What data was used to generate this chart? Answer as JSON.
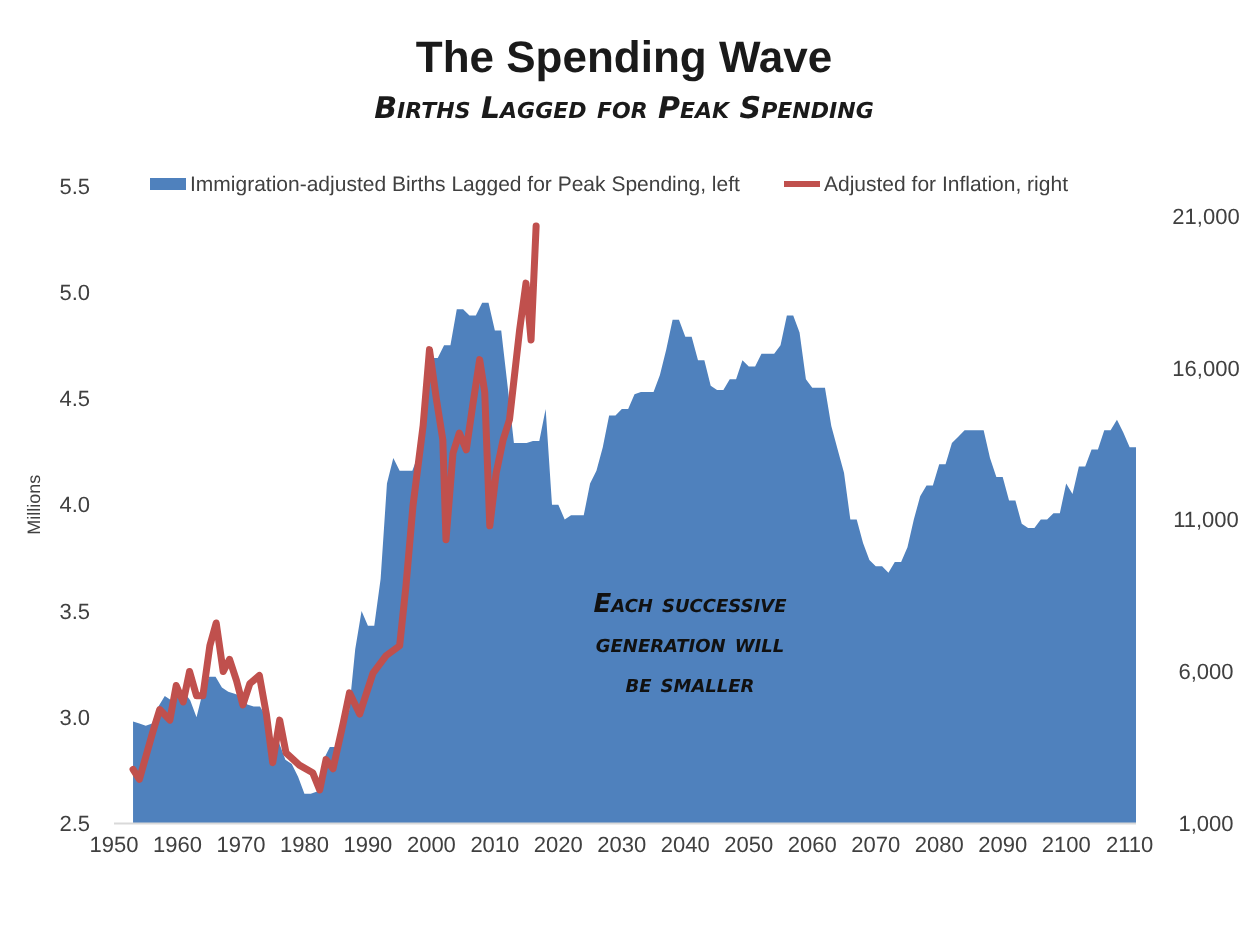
{
  "chart_data": {
    "type": "area",
    "title": "The Spending Wave",
    "subtitle": "Births Lagged for Peak Spending",
    "ylabel": "Millions",
    "xlim": [
      1950,
      2111
    ],
    "xticks": [
      1950,
      1960,
      1970,
      1980,
      1990,
      2000,
      2010,
      2020,
      2030,
      2040,
      2050,
      2060,
      2070,
      2080,
      2090,
      2100,
      2110
    ],
    "ylim": [
      2.5,
      5.5
    ],
    "yticks": [
      {
        "value": 2.5,
        "label": "2.5"
      },
      {
        "value": 3,
        "label": "3.0"
      },
      {
        "value": 3.5,
        "label": "3.5"
      },
      {
        "value": 4,
        "label": "4.0"
      },
      {
        "value": 4.5,
        "label": "4.5"
      },
      {
        "value": 5,
        "label": "5.0"
      },
      {
        "value": 5.5,
        "label": "5.5"
      }
    ],
    "y2lim": [
      1000,
      21000
    ],
    "y2ticks": [
      {
        "value": 1000,
        "label": "1,000"
      },
      {
        "value": 6000,
        "label": "6,000"
      },
      {
        "value": 11000,
        "label": "11,000"
      },
      {
        "value": 16000,
        "label": "16,000"
      },
      {
        "value": 21000,
        "label": "21,000"
      }
    ],
    "legend": "top",
    "grid": false,
    "annotations": [
      "Each successive generation will be smaller"
    ],
    "series": [
      {
        "name": "Immigration-adjusted Births Lagged for Peak Spending, left",
        "color": "#4f81bd",
        "x": [
          1953,
          1954,
          1955,
          1956,
          1957,
          1958,
          1959,
          1960,
          1961,
          1962,
          1963,
          1964,
          1965,
          1966,
          1967,
          1968,
          1969,
          1970,
          1971,
          1972,
          1973,
          1974,
          1975,
          1976,
          1977,
          1978,
          1979,
          1980,
          1981,
          1982,
          1983,
          1984,
          1985,
          1986,
          1987,
          1988,
          1989,
          1990,
          1991,
          1992,
          1993,
          1994,
          1995,
          1996,
          1997,
          1998,
          1999,
          2000,
          2001,
          2002,
          2003,
          2004,
          2005,
          2006,
          2007,
          2008,
          2009,
          2010,
          2011,
          2012,
          2013,
          2014,
          2015,
          2016,
          2017,
          2018,
          2019,
          2020,
          2021,
          2022,
          2023,
          2024,
          2025,
          2026,
          2027,
          2028,
          2029,
          2030,
          2031,
          2032,
          2033,
          2034,
          2035,
          2036,
          2037,
          2038,
          2039,
          2040,
          2041,
          2042,
          2043,
          2044,
          2045,
          2046,
          2047,
          2048,
          2049,
          2050,
          2051,
          2052,
          2053,
          2054,
          2055,
          2056,
          2057,
          2058,
          2059,
          2060,
          2061,
          2062,
          2063,
          2064,
          2065,
          2066,
          2067,
          2068,
          2069,
          2070,
          2071,
          2072,
          2073,
          2074,
          2075,
          2076,
          2077,
          2078,
          2079,
          2080,
          2081,
          2082,
          2083,
          2084,
          2085,
          2086,
          2087,
          2088,
          2089,
          2090,
          2091,
          2092,
          2093,
          2094,
          2095,
          2096,
          2097,
          2098,
          2099,
          2100,
          2101,
          2102,
          2103,
          2104,
          2105,
          2106,
          2107,
          2108,
          2109,
          2110,
          2111
        ],
        "values": [
          2.98,
          2.97,
          2.96,
          2.97,
          3.05,
          3.1,
          3.08,
          3.1,
          3.12,
          3.08,
          3.0,
          3.12,
          3.19,
          3.19,
          3.14,
          3.12,
          3.11,
          3.1,
          3.06,
          3.05,
          3.05,
          3.0,
          2.9,
          2.88,
          2.8,
          2.78,
          2.72,
          2.64,
          2.64,
          2.65,
          2.8,
          2.86,
          2.86,
          3.02,
          3.02,
          3.32,
          3.5,
          3.43,
          3.43,
          3.65,
          4.1,
          4.22,
          4.16,
          4.16,
          4.16,
          4.24,
          4.4,
          4.69,
          4.69,
          4.75,
          4.75,
          4.92,
          4.92,
          4.89,
          4.89,
          4.95,
          4.95,
          4.82,
          4.82,
          4.56,
          4.29,
          4.29,
          4.29,
          4.3,
          4.3,
          4.45,
          4.0,
          4.0,
          3.93,
          3.95,
          3.95,
          3.95,
          4.1,
          4.16,
          4.27,
          4.42,
          4.42,
          4.45,
          4.45,
          4.52,
          4.53,
          4.53,
          4.53,
          4.61,
          4.73,
          4.87,
          4.87,
          4.79,
          4.79,
          4.68,
          4.68,
          4.56,
          4.54,
          4.54,
          4.59,
          4.59,
          4.68,
          4.65,
          4.65,
          4.71,
          4.71,
          4.71,
          4.75,
          4.89,
          4.89,
          4.81,
          4.59,
          4.55,
          4.55,
          4.55,
          4.37,
          4.26,
          4.15,
          3.93,
          3.93,
          3.82,
          3.74,
          3.71,
          3.71,
          3.68,
          3.73,
          3.73,
          3.8,
          3.93,
          4.04,
          4.09,
          4.09,
          4.19,
          4.19,
          4.29,
          4.32,
          4.35,
          4.35,
          4.35,
          4.35,
          4.22,
          4.13,
          4.13,
          4.02,
          4.02,
          3.91,
          3.89,
          3.89,
          3.93,
          3.93,
          3.96,
          3.96,
          4.1,
          4.05,
          4.18,
          4.18,
          4.26,
          4.26,
          4.35,
          4.35,
          4.4,
          4.34,
          4.27,
          4.27
        ]
      },
      {
        "name": "Adjusted for Inflation, right",
        "type": "line",
        "axis": "y2",
        "color": "#c0504d",
        "x": [
          1953.0,
          1954.0,
          1956.1,
          1957.2,
          1958.8,
          1959.8,
          1960.9,
          1961.9,
          1963.0,
          1964.0,
          1965.1,
          1966.1,
          1967.2,
          1968.2,
          1969.3,
          1970.3,
          1971.4,
          1972.9,
          1974.0,
          1975.0,
          1976.1,
          1977.1,
          1979.2,
          1981.3,
          1982.4,
          1983.4,
          1984.5,
          1986.1,
          1987.1,
          1988.7,
          1990.8,
          1992.9,
          1995.0,
          1996.0,
          1997.1,
          1998.7,
          1999.7,
          2000.8,
          2001.8,
          2002.3,
          2003.4,
          2004.4,
          2005.5,
          2006.5,
          2007.6,
          2008.4,
          2009.2,
          2010.2,
          2011.3,
          2012.3,
          2013.9,
          2014.9,
          2015.7,
          2016.5
        ],
        "values": [
          2780,
          2450,
          4000,
          4750,
          4400,
          5540,
          5000,
          6000,
          5200,
          5200,
          6850,
          7600,
          6000,
          6400,
          5700,
          4900,
          5600,
          5870,
          4600,
          3000,
          4400,
          3320,
          2920,
          2670,
          2100,
          3100,
          2800,
          4300,
          5300,
          4600,
          5950,
          6530,
          6850,
          8830,
          11460,
          14100,
          16600,
          14950,
          13630,
          10340,
          13190,
          13850,
          13300,
          14750,
          16270,
          15200,
          10800,
          12530,
          13630,
          14290,
          17250,
          18790,
          16920,
          20670
        ]
      }
    ]
  }
}
